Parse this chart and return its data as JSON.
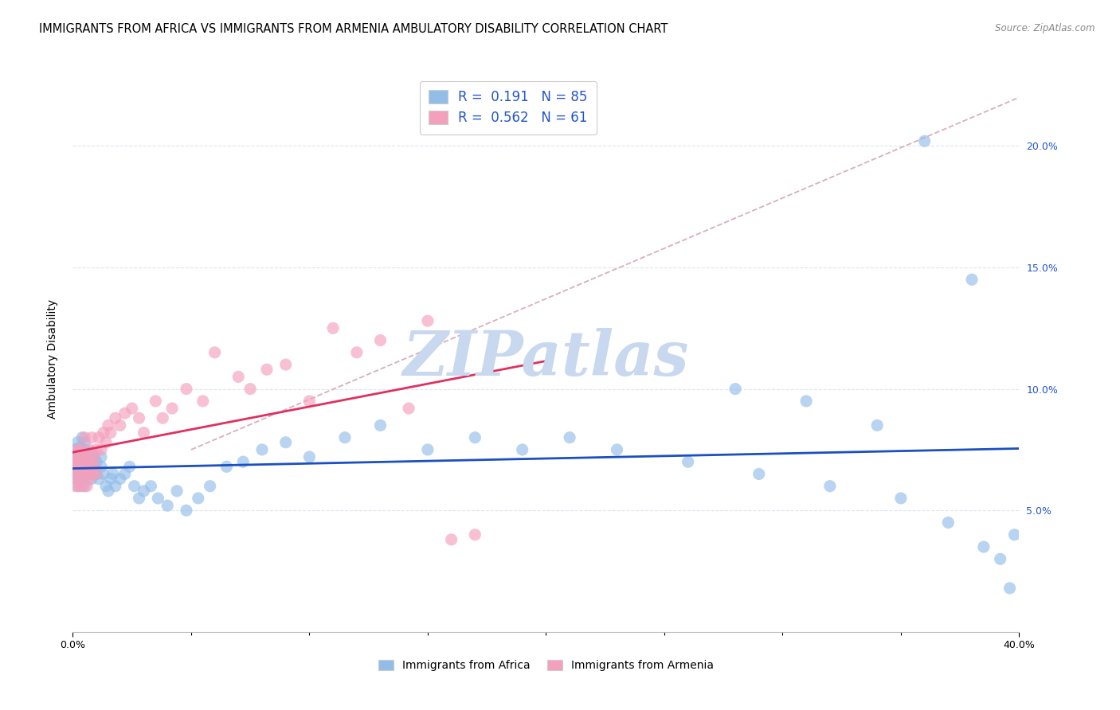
{
  "title": "IMMIGRANTS FROM AFRICA VS IMMIGRANTS FROM ARMENIA AMBULATORY DISABILITY CORRELATION CHART",
  "source": "Source: ZipAtlas.com",
  "ylabel": "Ambulatory Disability",
  "xmin": 0.0,
  "xmax": 0.4,
  "ymin": 0.0,
  "ymax": 0.225,
  "yticks": [
    0.05,
    0.1,
    0.15,
    0.2
  ],
  "ytick_labels": [
    "5.0%",
    "10.0%",
    "15.0%",
    "20.0%"
  ],
  "africa_color": "#92bde8",
  "armenia_color": "#f4a0bc",
  "africa_trend_color": "#1a50c0",
  "armenia_trend_color": "#e03060",
  "diagonal_color": "#d4a0b0",
  "watermark": "ZIPatlas",
  "watermark_color": "#c8d8ee",
  "legend_R1": "R =  0.191",
  "legend_N1": "N = 85",
  "legend_R2": "R =  0.562",
  "legend_N2": "N = 61",
  "bottom_label1": "Immigrants from Africa",
  "bottom_label2": "Immigrants from Armenia",
  "africa_x": [
    0.001,
    0.001,
    0.001,
    0.001,
    0.002,
    0.002,
    0.002,
    0.002,
    0.002,
    0.003,
    0.003,
    0.003,
    0.003,
    0.003,
    0.004,
    0.004,
    0.004,
    0.004,
    0.005,
    0.005,
    0.005,
    0.005,
    0.005,
    0.006,
    0.006,
    0.006,
    0.006,
    0.007,
    0.007,
    0.007,
    0.008,
    0.008,
    0.008,
    0.009,
    0.009,
    0.01,
    0.01,
    0.011,
    0.012,
    0.012,
    0.013,
    0.014,
    0.015,
    0.016,
    0.017,
    0.018,
    0.02,
    0.022,
    0.024,
    0.026,
    0.028,
    0.03,
    0.033,
    0.036,
    0.04,
    0.044,
    0.048,
    0.053,
    0.058,
    0.065,
    0.072,
    0.08,
    0.09,
    0.1,
    0.115,
    0.13,
    0.15,
    0.17,
    0.19,
    0.21,
    0.23,
    0.26,
    0.29,
    0.32,
    0.35,
    0.37,
    0.385,
    0.392,
    0.396,
    0.398,
    0.38,
    0.36,
    0.34,
    0.31,
    0.28
  ],
  "africa_y": [
    0.07,
    0.075,
    0.068,
    0.065,
    0.072,
    0.078,
    0.065,
    0.06,
    0.073,
    0.068,
    0.074,
    0.07,
    0.063,
    0.076,
    0.065,
    0.071,
    0.068,
    0.08,
    0.06,
    0.075,
    0.07,
    0.064,
    0.078,
    0.066,
    0.073,
    0.069,
    0.072,
    0.065,
    0.068,
    0.071,
    0.063,
    0.07,
    0.074,
    0.068,
    0.072,
    0.065,
    0.07,
    0.063,
    0.068,
    0.072,
    0.065,
    0.06,
    0.058,
    0.063,
    0.065,
    0.06,
    0.063,
    0.065,
    0.068,
    0.06,
    0.055,
    0.058,
    0.06,
    0.055,
    0.052,
    0.058,
    0.05,
    0.055,
    0.06,
    0.068,
    0.07,
    0.075,
    0.078,
    0.072,
    0.08,
    0.085,
    0.075,
    0.08,
    0.075,
    0.08,
    0.075,
    0.07,
    0.065,
    0.06,
    0.055,
    0.045,
    0.035,
    0.03,
    0.018,
    0.04,
    0.145,
    0.202,
    0.085,
    0.095,
    0.1
  ],
  "armenia_x": [
    0.001,
    0.001,
    0.001,
    0.001,
    0.002,
    0.002,
    0.002,
    0.002,
    0.003,
    0.003,
    0.003,
    0.003,
    0.004,
    0.004,
    0.004,
    0.005,
    0.005,
    0.005,
    0.006,
    0.006,
    0.006,
    0.007,
    0.007,
    0.007,
    0.008,
    0.008,
    0.008,
    0.009,
    0.009,
    0.01,
    0.01,
    0.011,
    0.012,
    0.013,
    0.014,
    0.015,
    0.016,
    0.018,
    0.02,
    0.022,
    0.025,
    0.028,
    0.03,
    0.035,
    0.038,
    0.042,
    0.048,
    0.055,
    0.06,
    0.07,
    0.075,
    0.082,
    0.09,
    0.1,
    0.11,
    0.12,
    0.13,
    0.142,
    0.15,
    0.16,
    0.17
  ],
  "armenia_y": [
    0.068,
    0.072,
    0.065,
    0.06,
    0.07,
    0.075,
    0.063,
    0.068,
    0.072,
    0.065,
    0.06,
    0.075,
    0.068,
    0.073,
    0.06,
    0.07,
    0.065,
    0.08,
    0.065,
    0.072,
    0.06,
    0.068,
    0.075,
    0.063,
    0.07,
    0.065,
    0.08,
    0.068,
    0.072,
    0.065,
    0.075,
    0.08,
    0.075,
    0.082,
    0.078,
    0.085,
    0.082,
    0.088,
    0.085,
    0.09,
    0.092,
    0.088,
    0.082,
    0.095,
    0.088,
    0.092,
    0.1,
    0.095,
    0.115,
    0.105,
    0.1,
    0.108,
    0.11,
    0.095,
    0.125,
    0.115,
    0.12,
    0.092,
    0.128,
    0.038,
    0.04
  ]
}
